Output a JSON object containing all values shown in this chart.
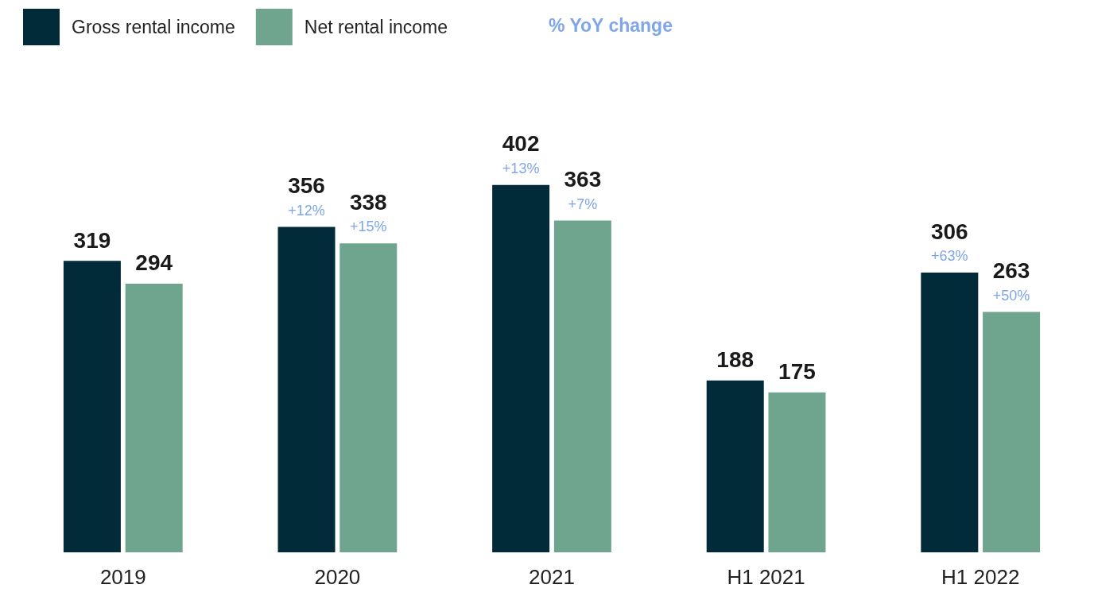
{
  "chart_data": {
    "type": "bar",
    "categories": [
      "2019",
      "2020",
      "2021",
      "H1 2021",
      "H1 2022"
    ],
    "series": [
      {
        "name": "Gross rental income",
        "color": "#022b3a",
        "values": [
          319,
          356,
          402,
          188,
          306
        ]
      },
      {
        "name": "Net rental income",
        "color": "#6fa58f",
        "values": [
          294,
          338,
          363,
          175,
          263
        ]
      }
    ],
    "data_labels": true,
    "legend": "top left",
    "tick_labels": "x",
    "grid": false,
    "annotations": [
      "% YoY change",
      {
        "text": "+12%",
        "x": "2020",
        "y": 356
      },
      {
        "text": "+15%",
        "x": "2020",
        "y": 338
      },
      {
        "text": "+13%",
        "x": "2021",
        "y": 402
      },
      {
        "text": "+7%",
        "x": "2021",
        "y": 363
      },
      {
        "text": "+63%",
        "x": "H1 2022",
        "y": 306
      },
      {
        "text": "+50%",
        "x": "H1 2022",
        "y": 263
      }
    ]
  }
}
